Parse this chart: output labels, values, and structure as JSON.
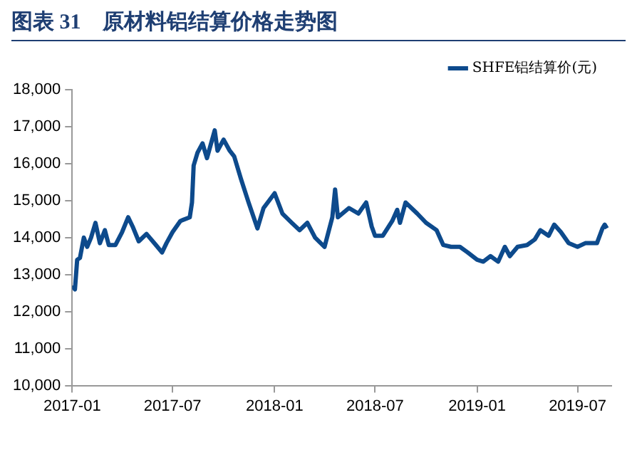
{
  "chart_data": {
    "type": "line",
    "title": "图表 31　原材料铝结算价格走势图",
    "x": [
      "2017-01-01",
      "2017-01-06",
      "2017-01-10",
      "2017-01-15",
      "2017-01-22",
      "2017-01-28",
      "2017-02-04",
      "2017-02-12",
      "2017-02-20",
      "2017-03-01",
      "2017-03-08",
      "2017-03-20",
      "2017-04-01",
      "2017-04-12",
      "2017-04-20",
      "2017-05-01",
      "2017-05-15",
      "2017-06-01",
      "2017-06-12",
      "2017-06-20",
      "2017-07-01",
      "2017-07-15",
      "2017-08-01",
      "2017-08-05",
      "2017-08-08",
      "2017-08-15",
      "2017-08-24",
      "2017-09-01",
      "2017-09-15",
      "2017-09-20",
      "2017-10-01",
      "2017-10-12",
      "2017-10-20",
      "2017-11-01",
      "2017-11-15",
      "2017-12-01",
      "2017-12-12",
      "2018-01-01",
      "2018-01-15",
      "2018-02-01",
      "2018-02-15",
      "2018-03-01",
      "2018-03-15",
      "2018-04-01",
      "2018-04-15",
      "2018-04-20",
      "2018-04-25",
      "2018-05-15",
      "2018-06-01",
      "2018-06-15",
      "2018-06-25",
      "2018-07-01",
      "2018-07-15",
      "2018-08-01",
      "2018-08-10",
      "2018-08-15",
      "2018-08-25",
      "2018-09-15",
      "2018-10-01",
      "2018-10-20",
      "2018-11-01",
      "2018-11-15",
      "2018-12-01",
      "2018-12-15",
      "2019-01-01",
      "2019-01-12",
      "2019-01-25",
      "2019-02-08",
      "2019-02-20",
      "2019-03-01",
      "2019-03-15",
      "2019-04-01",
      "2019-04-15",
      "2019-04-25",
      "2019-05-10",
      "2019-05-20",
      "2019-06-01",
      "2019-06-15",
      "2019-07-01",
      "2019-07-15",
      "2019-08-05",
      "2019-08-15",
      "2019-08-19",
      "2019-08-23"
    ],
    "series": [
      {
        "name": "SHFE铝结算价(元)",
        "color": "#0d4a8c",
        "values": [
          12700,
          12600,
          13400,
          13450,
          14000,
          13750,
          14000,
          14400,
          13850,
          14200,
          13800,
          13800,
          14150,
          14550,
          14300,
          13900,
          14100,
          13800,
          13600,
          13850,
          14150,
          14450,
          14550,
          14950,
          15950,
          16300,
          16550,
          16150,
          16900,
          16350,
          16650,
          16350,
          16200,
          15600,
          14950,
          14250,
          14800,
          15200,
          14650,
          14400,
          14200,
          14400,
          14000,
          13750,
          14550,
          15300,
          14550,
          14800,
          14650,
          14950,
          14300,
          14050,
          14050,
          14450,
          14750,
          14400,
          14950,
          14650,
          14400,
          14200,
          13800,
          13750,
          13750,
          13600,
          13400,
          13350,
          13500,
          13350,
          13750,
          13500,
          13750,
          13800,
          13950,
          14200,
          14050,
          14350,
          14150,
          13850,
          13750,
          13850,
          13850,
          14250,
          14350,
          14250
        ]
      }
    ],
    "xlim": [
      "2017-01-01",
      "2019-08-31"
    ],
    "xticks": [
      "2017-01",
      "2017-07",
      "2018-01",
      "2018-07",
      "2019-01",
      "2019-07"
    ],
    "ylim": [
      10000,
      18000
    ],
    "yticks": [
      {
        "value": 10000,
        "label": "10,000"
      },
      {
        "value": 11000,
        "label": "11,000"
      },
      {
        "value": 12000,
        "label": "12,000"
      },
      {
        "value": 13000,
        "label": "13,000"
      },
      {
        "value": 14000,
        "label": "14,000"
      },
      {
        "value": 15000,
        "label": "15,000"
      },
      {
        "value": 16000,
        "label": "16,000"
      },
      {
        "value": 17000,
        "label": "17,000"
      },
      {
        "value": 18000,
        "label": "18,000"
      }
    ],
    "grid": false,
    "legend": "top right",
    "marker": "none",
    "line_style": "solid"
  }
}
